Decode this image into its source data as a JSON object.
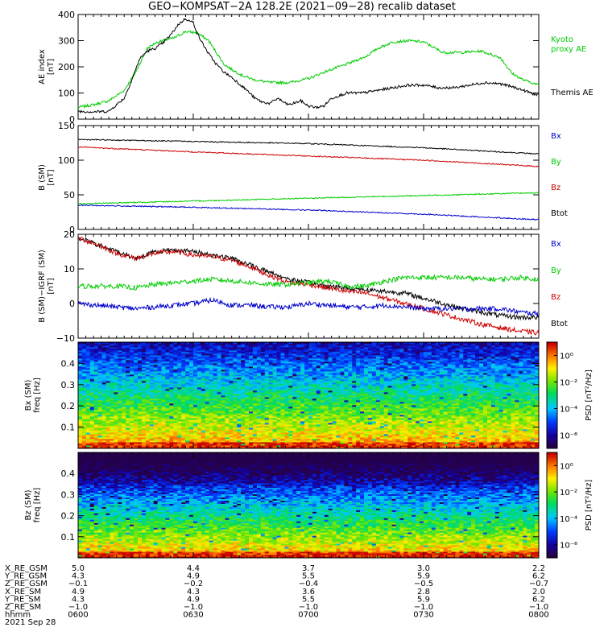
{
  "title": "GEO−KOMPSAT−2A 128.2E (2021−09−28) recalib dataset",
  "date_label": "2021 Sep 28",
  "ephemeris": {
    "rows": [
      {
        "label": "X_RE_GSM",
        "values": [
          "5.0",
          "4.4",
          "3.7",
          "3.0",
          "2.2"
        ]
      },
      {
        "label": "Y_RE_GSM",
        "values": [
          "4.3",
          "4.9",
          "5.5",
          "5.9",
          "6.2"
        ]
      },
      {
        "label": "Z_RE_GSM",
        "values": [
          "−0.1",
          "−0.2",
          "−0.4",
          "−0.5",
          "−0.7"
        ]
      },
      {
        "label": "X_RE_SM",
        "values": [
          "4.9",
          "4.3",
          "3.6",
          "2.8",
          "2.0"
        ]
      },
      {
        "label": "Y_RE_SM",
        "values": [
          "4.3",
          "4.9",
          "5.5",
          "5.9",
          "6.2"
        ]
      },
      {
        "label": "Z_RE_SM",
        "values": [
          "−1.0",
          "−1.0",
          "−1.0",
          "−1.0",
          "−1.0"
        ]
      },
      {
        "label": "hhmm",
        "values": [
          "0600",
          "0630",
          "0700",
          "0730",
          "0800"
        ]
      }
    ]
  },
  "chart_data": [
    {
      "type": "line",
      "panel": "ae",
      "ylabel": [
        "AE index",
        "[nT]"
      ],
      "ylim": [
        0,
        400
      ],
      "yticks": [
        "0",
        "100",
        "200",
        "300",
        "400"
      ],
      "x_range_minutes": [
        0,
        120
      ],
      "legend": [
        {
          "text": "Kyoto",
          "color": "#00cc00"
        },
        {
          "text": "proxy AE",
          "color": "#00cc00"
        },
        {
          "text": "Themis AE",
          "color": "#000000"
        }
      ],
      "series": [
        {
          "name": "Kyoto proxy AE",
          "color": "#00cc00",
          "x": [
            0,
            4,
            8,
            12,
            15,
            18,
            20,
            22,
            25,
            28,
            31,
            34,
            38,
            40,
            43,
            46,
            50,
            55,
            60,
            65,
            70,
            75,
            78,
            82,
            86,
            90,
            95,
            100,
            105,
            110,
            113,
            116,
            120
          ],
          "y": [
            45,
            55,
            70,
            110,
            180,
            270,
            290,
            300,
            310,
            335,
            330,
            300,
            210,
            190,
            165,
            150,
            140,
            140,
            155,
            185,
            210,
            240,
            270,
            295,
            300,
            295,
            255,
            255,
            260,
            235,
            175,
            150,
            130
          ]
        },
        {
          "name": "Themis AE",
          "color": "#000000",
          "x": [
            0,
            4,
            8,
            10,
            12,
            14,
            16,
            18,
            20,
            22,
            24,
            26,
            28,
            29,
            30,
            31,
            32,
            34,
            36,
            38,
            40,
            42,
            44,
            46,
            48,
            50,
            52,
            54,
            55,
            58,
            60,
            62,
            64,
            66,
            68,
            70,
            74,
            78,
            82,
            86,
            90,
            94,
            98,
            102,
            106,
            110,
            114,
            116,
            118,
            120
          ],
          "y": [
            30,
            28,
            30,
            55,
            80,
            150,
            230,
            260,
            270,
            290,
            320,
            360,
            385,
            375,
            370,
            330,
            300,
            250,
            210,
            180,
            160,
            135,
            110,
            80,
            65,
            60,
            80,
            60,
            55,
            70,
            50,
            45,
            50,
            80,
            90,
            100,
            100,
            110,
            120,
            130,
            130,
            120,
            120,
            130,
            140,
            135,
            120,
            110,
            100,
            90
          ]
        }
      ]
    },
    {
      "type": "line",
      "panel": "b_sm",
      "ylabel": [
        "B (SM)",
        "[nT]"
      ],
      "ylim": [
        0,
        150
      ],
      "yticks": [
        "0",
        "50",
        "100",
        "150"
      ],
      "x_range_minutes": [
        0,
        120
      ],
      "legend": [
        {
          "text": "Bx",
          "color": "#0000cc"
        },
        {
          "text": "By",
          "color": "#00cc00"
        },
        {
          "text": "Bz",
          "color": "#cc0000"
        },
        {
          "text": "Btot",
          "color": "#000000"
        }
      ],
      "series": [
        {
          "name": "Btot",
          "color": "#000000",
          "x": [
            0,
            30,
            60,
            90,
            120
          ],
          "y": [
            130,
            127,
            124,
            118,
            109
          ]
        },
        {
          "name": "Bz",
          "color": "#cc0000",
          "x": [
            0,
            30,
            60,
            90,
            120
          ],
          "y": [
            119,
            112,
            106,
            100,
            91
          ]
        },
        {
          "name": "By",
          "color": "#00cc00",
          "x": [
            0,
            30,
            60,
            90,
            120
          ],
          "y": [
            37,
            41,
            45,
            49,
            53
          ]
        },
        {
          "name": "Bx",
          "color": "#0000cc",
          "x": [
            0,
            30,
            60,
            90,
            120
          ],
          "y": [
            35,
            32,
            28,
            22,
            14
          ]
        }
      ]
    },
    {
      "type": "line",
      "panel": "b_minus_igrf",
      "ylabel": [
        "B (SM)−IGRF (SM)",
        "[nT]"
      ],
      "ylim": [
        -10,
        20
      ],
      "yticks": [
        "−10",
        "0",
        "10",
        "20"
      ],
      "x_range_minutes": [
        0,
        120
      ],
      "legend": [
        {
          "text": "Bx",
          "color": "#0000cc"
        },
        {
          "text": "By",
          "color": "#00cc00"
        },
        {
          "text": "Bz",
          "color": "#cc0000"
        },
        {
          "text": "Btot",
          "color": "#000000"
        }
      ],
      "series": [
        {
          "name": "Btot",
          "color": "#000000",
          "x": [
            0,
            5,
            10,
            15,
            20,
            25,
            30,
            35,
            40,
            45,
            50,
            55,
            60,
            65,
            70,
            75,
            80,
            85,
            90,
            95,
            100,
            105,
            110,
            115,
            120
          ],
          "y": [
            19,
            17,
            15,
            13,
            15,
            15.5,
            15,
            14,
            13,
            11,
            9,
            7,
            6,
            5,
            4.5,
            4,
            3.5,
            3,
            1.5,
            0,
            -1.5,
            -2.5,
            -3.5,
            -4,
            -4
          ]
        },
        {
          "name": "Bz",
          "color": "#cc0000",
          "x": [
            0,
            5,
            10,
            15,
            20,
            25,
            30,
            35,
            40,
            45,
            50,
            55,
            60,
            65,
            70,
            75,
            80,
            85,
            90,
            95,
            100,
            105,
            110,
            115,
            120
          ],
          "y": [
            19,
            17,
            14.5,
            13,
            14.5,
            15,
            14,
            13.5,
            12.5,
            10.5,
            8,
            6,
            5.5,
            4.5,
            3.5,
            3,
            1.5,
            0,
            -1.5,
            -3,
            -4.5,
            -6,
            -7,
            -8,
            -8.5
          ]
        },
        {
          "name": "By",
          "color": "#00cc00",
          "x": [
            0,
            5,
            10,
            15,
            20,
            25,
            30,
            35,
            40,
            45,
            50,
            55,
            60,
            65,
            70,
            75,
            80,
            85,
            90,
            95,
            100,
            105,
            110,
            115,
            120
          ],
          "y": [
            5,
            5,
            5,
            4.5,
            5.5,
            6,
            6.5,
            7,
            6.5,
            6,
            5.5,
            5.5,
            6,
            6.5,
            5,
            5,
            6.5,
            7.5,
            7.5,
            7.5,
            7.5,
            7,
            7,
            7.5,
            7
          ]
        },
        {
          "name": "Bx",
          "color": "#0000cc",
          "x": [
            0,
            5,
            10,
            15,
            20,
            25,
            30,
            35,
            40,
            45,
            50,
            55,
            60,
            65,
            70,
            75,
            80,
            85,
            90,
            95,
            100,
            105,
            110,
            115,
            120
          ],
          "y": [
            0,
            -0.5,
            -1,
            -1.5,
            -1,
            -0.5,
            0,
            1,
            -0.5,
            -0.5,
            -1,
            -1,
            0,
            -0.5,
            -1,
            -1,
            -0.5,
            -1,
            -1.5,
            -1.5,
            -1.5,
            -1.5,
            -1.5,
            -2.5,
            -3
          ]
        }
      ]
    },
    {
      "type": "heatmap",
      "panel": "bx_spectrogram",
      "ylabel": [
        "Bx (SM)",
        "freq [Hz]"
      ],
      "ylim": [
        0,
        0.5
      ],
      "yticks": [
        "0.1",
        "0.2",
        "0.3",
        "0.4"
      ],
      "colorbar": {
        "label": "PSD [nT²/Hz]",
        "ticks": [
          "10⁰",
          "10⁻²",
          "10⁻⁴",
          "10⁻⁶"
        ],
        "log10_range": [
          -7,
          1
        ]
      }
    },
    {
      "type": "heatmap",
      "panel": "bz_spectrogram",
      "ylabel": [
        "Bz (SM)",
        "freq [Hz]"
      ],
      "ylim": [
        0,
        0.5
      ],
      "yticks": [
        "0.1",
        "0.2",
        "0.3",
        "0.4"
      ],
      "colorbar": {
        "label": "PSD [nT²/Hz]",
        "ticks": [
          "10⁰",
          "10⁻²",
          "10⁻⁴",
          "10⁻⁶"
        ],
        "log10_range": [
          -7,
          1
        ]
      }
    }
  ]
}
